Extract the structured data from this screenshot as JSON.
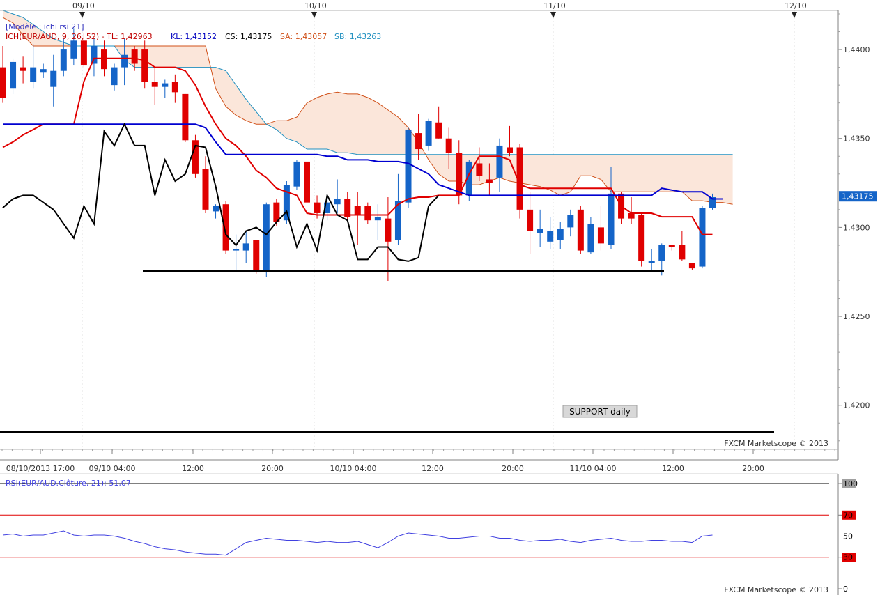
{
  "chart_data": [
    {
      "type": "candlestick",
      "template_label": "[Modèle : ichi rsi 21]",
      "instrument": "EUR/AUD",
      "timeframe": "1h",
      "legend": {
        "ich": "ICH(EUR/AUD, 9, 26, 52) - TL: 1,42963",
        "kl": "KL: 1,43152",
        "cs": "CS: 1,43175",
        "sa": "SA: 1,43057",
        "sb": "SB: 1,43263"
      },
      "price_ticks": [
        {
          "value": 1.44,
          "label": "1,4400"
        },
        {
          "value": 1.435,
          "label": "1,4350"
        },
        {
          "value": 1.43,
          "label": "1,4300"
        },
        {
          "value": 1.425,
          "label": "1,4250"
        },
        {
          "value": 1.42,
          "label": "1,4200"
        }
      ],
      "current_price_label": "1,43175",
      "current_price": 1.43175,
      "ylim": [
        1.4176,
        1.442
      ],
      "day_markers": [
        "09/10",
        "10/10",
        "11/10",
        "12/10"
      ],
      "time_labels": [
        "08/10/2013 17:00",
        "09/10 04:00",
        "12:00",
        "20:00",
        "10/10 04:00",
        "12:00",
        "20:00",
        "11/10 04:00",
        "12:00",
        "20:00"
      ],
      "watermark": "FXCM Marketscope © 2013",
      "annotation": "SUPPORT daily",
      "support_level": 1.4185,
      "horizontal_line_level": 1.42755,
      "candles": [
        [
          1.439,
          1.4402,
          1.437,
          1.4373
        ],
        [
          1.4378,
          1.4395,
          1.4375,
          1.4393
        ],
        [
          1.439,
          1.4396,
          1.4381,
          1.4388
        ],
        [
          1.4382,
          1.4403,
          1.4378,
          1.439
        ],
        [
          1.4387,
          1.4392,
          1.4384,
          1.4389
        ],
        [
          1.4379,
          1.4397,
          1.4368,
          1.4388
        ],
        [
          1.4388,
          1.4406,
          1.4385,
          1.44
        ],
        [
          1.4395,
          1.4412,
          1.4391,
          1.4405
        ],
        [
          1.4405,
          1.4409,
          1.439,
          1.4391
        ],
        [
          1.4392,
          1.4406,
          1.4385,
          1.4402
        ],
        [
          1.44,
          1.4405,
          1.4385,
          1.4389
        ],
        [
          1.438,
          1.4392,
          1.4377,
          1.439
        ],
        [
          1.439,
          1.4406,
          1.438,
          1.4397
        ],
        [
          1.44,
          1.4402,
          1.4388,
          1.4392
        ],
        [
          1.44,
          1.4405,
          1.4378,
          1.4382
        ],
        [
          1.4382,
          1.439,
          1.4369,
          1.4379
        ],
        [
          1.4379,
          1.4383,
          1.4373,
          1.4381
        ],
        [
          1.4382,
          1.4386,
          1.437,
          1.4376
        ],
        [
          1.4375,
          1.4375,
          1.4348,
          1.4349
        ],
        [
          1.4349,
          1.4352,
          1.4328,
          1.433
        ],
        [
          1.4333,
          1.434,
          1.4308,
          1.431
        ],
        [
          1.4309,
          1.4313,
          1.4305,
          1.4312
        ],
        [
          1.4313,
          1.4315,
          1.4285,
          1.4287
        ],
        [
          1.4287,
          1.4296,
          1.4276,
          1.4288
        ],
        [
          1.4287,
          1.4298,
          1.428,
          1.4291
        ],
        [
          1.4293,
          1.4293,
          1.4274,
          1.4276
        ],
        [
          1.4275,
          1.4314,
          1.4272,
          1.4313
        ],
        [
          1.4314,
          1.4316,
          1.4301,
          1.4303
        ],
        [
          1.4304,
          1.4326,
          1.4302,
          1.4324
        ],
        [
          1.4323,
          1.4338,
          1.4321,
          1.4337
        ],
        [
          1.4337,
          1.434,
          1.4313,
          1.4314
        ],
        [
          1.4314,
          1.4318,
          1.4305,
          1.4308
        ],
        [
          1.4308,
          1.4318,
          1.4304,
          1.4314
        ],
        [
          1.4313,
          1.4327,
          1.4308,
          1.4316
        ],
        [
          1.4316,
          1.432,
          1.4304,
          1.4306
        ],
        [
          1.4312,
          1.432,
          1.429,
          1.4307
        ],
        [
          1.4312,
          1.4314,
          1.4302,
          1.4304
        ],
        [
          1.4304,
          1.4313,
          1.4293,
          1.4306
        ],
        [
          1.4305,
          1.4317,
          1.427,
          1.4292
        ],
        [
          1.4293,
          1.433,
          1.429,
          1.4315
        ],
        [
          1.4314,
          1.4356,
          1.4311,
          1.4355
        ],
        [
          1.4353,
          1.4364,
          1.4338,
          1.4344
        ],
        [
          1.4346,
          1.4361,
          1.4343,
          1.436
        ],
        [
          1.4359,
          1.4368,
          1.435,
          1.435
        ],
        [
          1.435,
          1.4356,
          1.4333,
          1.4342
        ],
        [
          1.4342,
          1.4349,
          1.4313,
          1.4318
        ],
        [
          1.4318,
          1.4338,
          1.4315,
          1.4337
        ],
        [
          1.4336,
          1.4345,
          1.4326,
          1.4329
        ],
        [
          1.4327,
          1.4336,
          1.4318,
          1.4325
        ],
        [
          1.4328,
          1.435,
          1.432,
          1.4346
        ],
        [
          1.4345,
          1.4357,
          1.434,
          1.4342
        ],
        [
          1.4345,
          1.4347,
          1.4305,
          1.431
        ],
        [
          1.431,
          1.432,
          1.4285,
          1.4298
        ],
        [
          1.4297,
          1.431,
          1.4289,
          1.4299
        ],
        [
          1.4292,
          1.4306,
          1.4288,
          1.4298
        ],
        [
          1.4293,
          1.4303,
          1.4288,
          1.4299
        ],
        [
          1.43,
          1.431,
          1.4295,
          1.4307
        ],
        [
          1.431,
          1.4312,
          1.4285,
          1.4287
        ],
        [
          1.4286,
          1.4306,
          1.4285,
          1.4302
        ],
        [
          1.43,
          1.4312,
          1.4287,
          1.4291
        ],
        [
          1.429,
          1.4334,
          1.4288,
          1.4319
        ],
        [
          1.4319,
          1.432,
          1.4302,
          1.4305
        ],
        [
          1.4308,
          1.4317,
          1.4302,
          1.4305
        ],
        [
          1.4307,
          1.4308,
          1.4278,
          1.4281
        ],
        [
          1.428,
          1.4288,
          1.4276,
          1.4281
        ],
        [
          1.4281,
          1.4291,
          1.4273,
          1.429
        ],
        [
          1.429,
          1.429,
          1.4287,
          1.4289
        ],
        [
          1.429,
          1.4298,
          1.4281,
          1.4282
        ],
        [
          1.428,
          1.428,
          1.4276,
          1.4277
        ],
        [
          1.4278,
          1.4312,
          1.4277,
          1.4311
        ],
        [
          1.4311,
          1.4319,
          1.431,
          1.4317
        ]
      ],
      "tenkan_line": [
        1.4345,
        1.4348,
        1.4352,
        1.4355,
        1.4358,
        1.4358,
        1.4358,
        1.4358,
        1.4382,
        1.4395,
        1.4395,
        1.4395,
        1.4395,
        1.4395,
        1.4394,
        1.439,
        1.439,
        1.439,
        1.4388,
        1.438,
        1.4368,
        1.4358,
        1.435,
        1.4346,
        1.434,
        1.4332,
        1.4328,
        1.4322,
        1.432,
        1.4318,
        1.4308,
        1.4307,
        1.4307,
        1.4307,
        1.4307,
        1.4307,
        1.4307,
        1.4307,
        1.4307,
        1.4313,
        1.4316,
        1.4317,
        1.4317,
        1.4318,
        1.4318,
        1.4318,
        1.433,
        1.434,
        1.434,
        1.434,
        1.4338,
        1.4324,
        1.4322,
        1.4322,
        1.4322,
        1.4322,
        1.4322,
        1.4322,
        1.4322,
        1.4322,
        1.4322,
        1.4312,
        1.4308,
        1.4308,
        1.4308,
        1.4306,
        1.4306,
        1.4306,
        1.4306,
        1.4296,
        1.4296
      ],
      "kijun_line": [
        1.4358,
        1.4358,
        1.4358,
        1.4358,
        1.4358,
        1.4358,
        1.4358,
        1.4358,
        1.4358,
        1.4358,
        1.4358,
        1.4358,
        1.4358,
        1.4358,
        1.4358,
        1.4358,
        1.4358,
        1.4358,
        1.4358,
        1.4358,
        1.4356,
        1.4348,
        1.4341,
        1.4341,
        1.4341,
        1.4341,
        1.4341,
        1.4341,
        1.4341,
        1.4341,
        1.4341,
        1.4341,
        1.434,
        1.434,
        1.4338,
        1.4338,
        1.4338,
        1.4337,
        1.4337,
        1.4337,
        1.4336,
        1.4333,
        1.433,
        1.4324,
        1.4322,
        1.432,
        1.4318,
        1.4318,
        1.4318,
        1.4318,
        1.4318,
        1.4318,
        1.4318,
        1.4318,
        1.4318,
        1.4318,
        1.4318,
        1.4318,
        1.4318,
        1.4318,
        1.4318,
        1.4318,
        1.4318,
        1.4318,
        1.4318,
        1.4322,
        1.4321,
        1.432,
        1.432,
        1.432,
        1.4316,
        1.4316
      ],
      "chikou_line": [
        1.4311,
        1.4316,
        1.4318,
        1.4318,
        1.4314,
        1.431,
        1.4302,
        1.4294,
        1.4312,
        1.4302,
        1.4354,
        1.4346,
        1.4358,
        1.4346,
        1.4346,
        1.4318,
        1.4338,
        1.4326,
        1.433,
        1.4346,
        1.4345,
        1.4323,
        1.4296,
        1.429,
        1.4298,
        1.43,
        1.4296,
        1.4303,
        1.4309,
        1.4289,
        1.4302,
        1.4287,
        1.4318,
        1.4307,
        1.4304,
        1.4282,
        1.4282,
        1.4289,
        1.4289,
        1.4282,
        1.4281,
        1.4283,
        1.4312,
        1.4318
      ],
      "senkou_a": [
        1.4418,
        1.4415,
        1.4408,
        1.4402,
        1.4402,
        1.4402,
        1.4402,
        1.4402,
        1.4402,
        1.4402,
        1.4402,
        1.4402,
        1.4402,
        1.4402,
        1.4402,
        1.4402,
        1.4402,
        1.4402,
        1.4402,
        1.4402,
        1.4402,
        1.4378,
        1.4368,
        1.4363,
        1.436,
        1.4358,
        1.4358,
        1.436,
        1.436,
        1.4362,
        1.437,
        1.4373,
        1.4375,
        1.4376,
        1.4375,
        1.4375,
        1.4373,
        1.437,
        1.4366,
        1.4362,
        1.4356,
        1.4348,
        1.4338,
        1.433,
        1.4326,
        1.4326,
        1.4324,
        1.4324,
        1.4326,
        1.4328,
        1.4326,
        1.4325,
        1.4324,
        1.4323,
        1.4321,
        1.4318,
        1.432,
        1.4329,
        1.4329,
        1.4327,
        1.432,
        1.432,
        1.432,
        1.432,
        1.432,
        1.432,
        1.432,
        1.432,
        1.4315,
        1.4315,
        1.4314,
        1.4314,
        1.4313
      ],
      "senkou_b": [
        1.4422,
        1.442,
        1.4418,
        1.4414,
        1.441,
        1.4406,
        1.4404,
        1.4402,
        1.4402,
        1.4402,
        1.4402,
        1.4402,
        1.4394,
        1.439,
        1.439,
        1.439,
        1.439,
        1.439,
        1.439,
        1.439,
        1.439,
        1.439,
        1.4388,
        1.438,
        1.4372,
        1.4365,
        1.4358,
        1.4355,
        1.435,
        1.4348,
        1.4344,
        1.4344,
        1.4344,
        1.4342,
        1.4342,
        1.4341,
        1.4341,
        1.4341,
        1.4341,
        1.4341,
        1.4341,
        1.4341,
        1.4341,
        1.4341,
        1.4341,
        1.4341,
        1.4341,
        1.4341,
        1.4341,
        1.4341,
        1.4341,
        1.4341,
        1.4341,
        1.4341,
        1.4341,
        1.4341,
        1.4341,
        1.4341,
        1.4341,
        1.4341,
        1.4341,
        1.4341,
        1.4341,
        1.4341,
        1.4341,
        1.4341,
        1.4341,
        1.4341,
        1.4341,
        1.4341,
        1.4341,
        1.4341,
        1.4341
      ],
      "cloud_fill_color": "#fbe6da",
      "bull_color": "#1464c8",
      "bear_color": "#e00000",
      "tenkan_color": "#e00000",
      "kijun_color": "#0000d0",
      "chikou_color": "#000000",
      "senkou_a_color": "#d05018",
      "senkou_b_color": "#2090c0"
    },
    {
      "type": "line",
      "legend": "RSI(EUR/AUD.Clôture, 21): 51,07",
      "rsi_ticks": [
        {
          "value": 100,
          "label": "100"
        },
        {
          "value": 70,
          "label": "70"
        },
        {
          "value": 50,
          "label": "50"
        },
        {
          "value": 30,
          "label": "30"
        },
        {
          "value": 0,
          "label": "0"
        }
      ],
      "watermark": "FXCM Marketscope © 2013",
      "ylim": [
        0,
        100
      ],
      "values": [
        51,
        52,
        50,
        51,
        51,
        53,
        55,
        51,
        50,
        51,
        51,
        50,
        48,
        45,
        43,
        40,
        38,
        37,
        35,
        34,
        33,
        33,
        32,
        38,
        44,
        46,
        48,
        47,
        46,
        46,
        45,
        44,
        45,
        44,
        44,
        45,
        42,
        39,
        44,
        50,
        53,
        52,
        51,
        50,
        48,
        48,
        49,
        50,
        50,
        48,
        48,
        46,
        45,
        46,
        46,
        47,
        45,
        44,
        46,
        47,
        48,
        46,
        45,
        45,
        46,
        46,
        45,
        45,
        44,
        50,
        51
      ],
      "line_color": "#4040e0",
      "overbought_color": "#e00000"
    }
  ]
}
